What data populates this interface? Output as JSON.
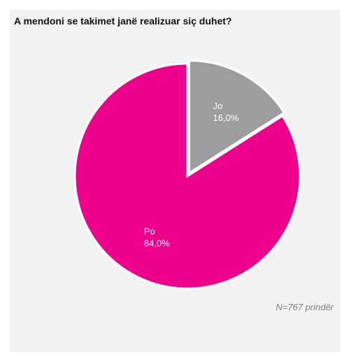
{
  "title": "A mendoni se takimet janë realizuar siç duhet?",
  "note": "N=767 prindër",
  "colors": {
    "panel_background": "#f2f2f2",
    "separator": "#ffffff"
  },
  "chart_data": {
    "type": "pie",
    "title": "A mendoni se takimet janë realizuar siç duhet?",
    "slices": [
      {
        "label": "Jo",
        "value": 16.0,
        "value_label": "16,0%",
        "color": "#9d9d9f",
        "exploded": true
      },
      {
        "label": "Po",
        "value": 84.0,
        "value_label": "84,0%",
        "color": "#ec008c",
        "exploded": false
      }
    ],
    "start": "12 o'clock",
    "direction": "clockwise",
    "legend": "none",
    "annotation": "N=767 prindër"
  }
}
